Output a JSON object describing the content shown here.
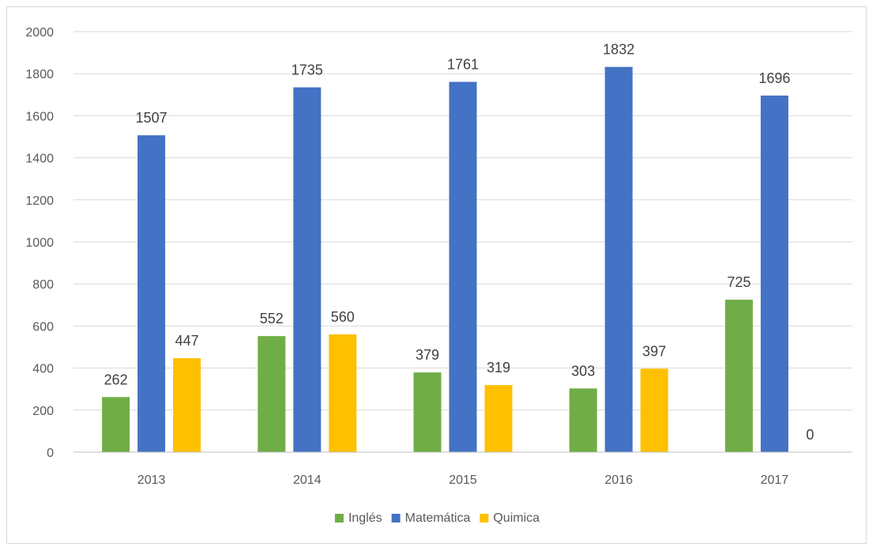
{
  "chart_data": {
    "type": "bar",
    "categories": [
      "2013",
      "2014",
      "2015",
      "2016",
      "2017"
    ],
    "series": [
      {
        "name": "Inglés",
        "color": "#70ad47",
        "values": [
          262,
          552,
          379,
          303,
          725
        ]
      },
      {
        "name": "Matemática",
        "color": "#4472c4",
        "values": [
          1507,
          1735,
          1761,
          1832,
          1696
        ]
      },
      {
        "name": "Quimica",
        "color": "#ffc000",
        "values": [
          447,
          560,
          319,
          397,
          0
        ]
      }
    ],
    "ylim": [
      0,
      2000
    ],
    "yticks": [
      0,
      200,
      400,
      600,
      800,
      1000,
      1200,
      1400,
      1600,
      1800,
      2000
    ],
    "grid": true,
    "legend": "bottom",
    "data_labels": true
  }
}
